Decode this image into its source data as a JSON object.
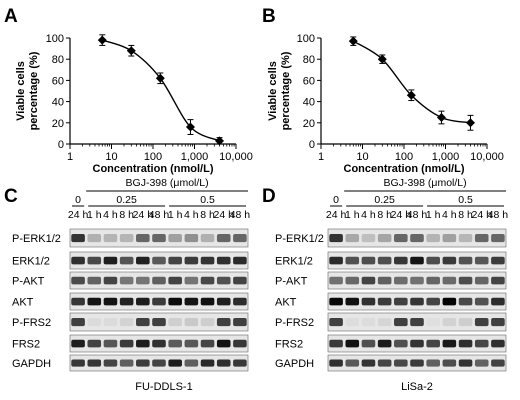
{
  "chart_data": [
    {
      "panel": "A",
      "type": "line",
      "xscale": "log",
      "xlim": [
        1,
        10000
      ],
      "ylim": [
        0,
        100
      ],
      "xlabel": "Concentration (nmol/L)",
      "ylabel": "Viable cells percentage (%)",
      "xticks": [
        "1",
        "10",
        "100",
        "1,000",
        "10,000"
      ],
      "yticks": [
        "0",
        "20",
        "40",
        "60",
        "80",
        "100"
      ],
      "x": [
        6,
        30,
        150,
        800,
        4000
      ],
      "y": [
        98,
        88,
        62,
        16,
        3
      ],
      "err": [
        5,
        5,
        5,
        7,
        3
      ],
      "marker": "diamond"
    },
    {
      "panel": "B",
      "type": "line",
      "xscale": "log",
      "xlim": [
        1,
        10000
      ],
      "ylim": [
        0,
        100
      ],
      "xlabel": "Concentration (nmol/L)",
      "ylabel": "Viable cells percentage (%)",
      "xticks": [
        "1",
        "10",
        "100",
        "1,000",
        "10,000"
      ],
      "yticks": [
        "0",
        "20",
        "40",
        "60",
        "80",
        "100"
      ],
      "x": [
        6,
        30,
        150,
        800,
        4000
      ],
      "y": [
        97,
        80,
        46,
        25,
        20
      ],
      "err": [
        4,
        4,
        5,
        6,
        7
      ],
      "marker": "diamond"
    }
  ],
  "blots": [
    {
      "panel": "C",
      "treatment": "BGJ-398 (μmol/L)",
      "concentrations": [
        "0",
        "0.25",
        "0.5"
      ],
      "lanes": [
        "24 h",
        "1 h",
        "4 h",
        "8 h",
        "24 h",
        "48 h",
        "1 h",
        "4 h",
        "8 h",
        "24 h",
        "48 h"
      ],
      "proteins": [
        "P-ERK1/2",
        "ERK1/2",
        "P-AKT",
        "AKT",
        "P-FRS2",
        "FRS2",
        "GAPDH"
      ],
      "cell_line": "FU-DDLS-1"
    },
    {
      "panel": "D",
      "treatment": "BGJ-398 (μmol/L)",
      "concentrations": [
        "0",
        "0.25",
        "0.5"
      ],
      "lanes": [
        "24 h",
        "1 h",
        "4 h",
        "8 h",
        "24 h",
        "48 h",
        "1 h",
        "4 h",
        "8 h",
        "24 h",
        "48 h"
      ],
      "proteins": [
        "P-ERK1/2",
        "ERK1/2",
        "P-AKT",
        "AKT",
        "P-FRS2",
        "FRS2",
        "GAPDH"
      ],
      "cell_line": "LiSa-2"
    }
  ]
}
